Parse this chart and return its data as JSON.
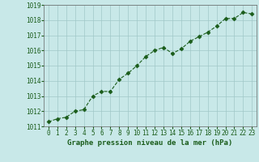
{
  "x": [
    0,
    1,
    2,
    3,
    4,
    5,
    6,
    7,
    8,
    9,
    10,
    11,
    12,
    13,
    14,
    15,
    16,
    17,
    18,
    19,
    20,
    21,
    22,
    23
  ],
  "y": [
    1011.3,
    1011.5,
    1011.6,
    1012.0,
    1012.1,
    1013.0,
    1013.3,
    1013.3,
    1014.1,
    1014.5,
    1015.0,
    1015.6,
    1016.0,
    1016.2,
    1015.8,
    1016.1,
    1016.6,
    1016.9,
    1017.2,
    1017.6,
    1018.1,
    1018.1,
    1018.5,
    1018.4
  ],
  "line_color": "#1a5c1a",
  "marker": "D",
  "marker_size": 2.5,
  "bg_color": "#c8e8e8",
  "grid_color": "#a0c8c8",
  "title": "Graphe pression niveau de la mer (hPa)",
  "xlim": [
    -0.5,
    23.5
  ],
  "ylim": [
    1011.0,
    1019.0
  ],
  "yticks": [
    1011,
    1012,
    1013,
    1014,
    1015,
    1016,
    1017,
    1018,
    1019
  ],
  "xticks": [
    0,
    1,
    2,
    3,
    4,
    5,
    6,
    7,
    8,
    9,
    10,
    11,
    12,
    13,
    14,
    15,
    16,
    17,
    18,
    19,
    20,
    21,
    22,
    23
  ],
  "tick_fontsize": 5.5,
  "title_fontsize": 6.5,
  "title_color": "#1a5c1a",
  "title_weight": "bold"
}
